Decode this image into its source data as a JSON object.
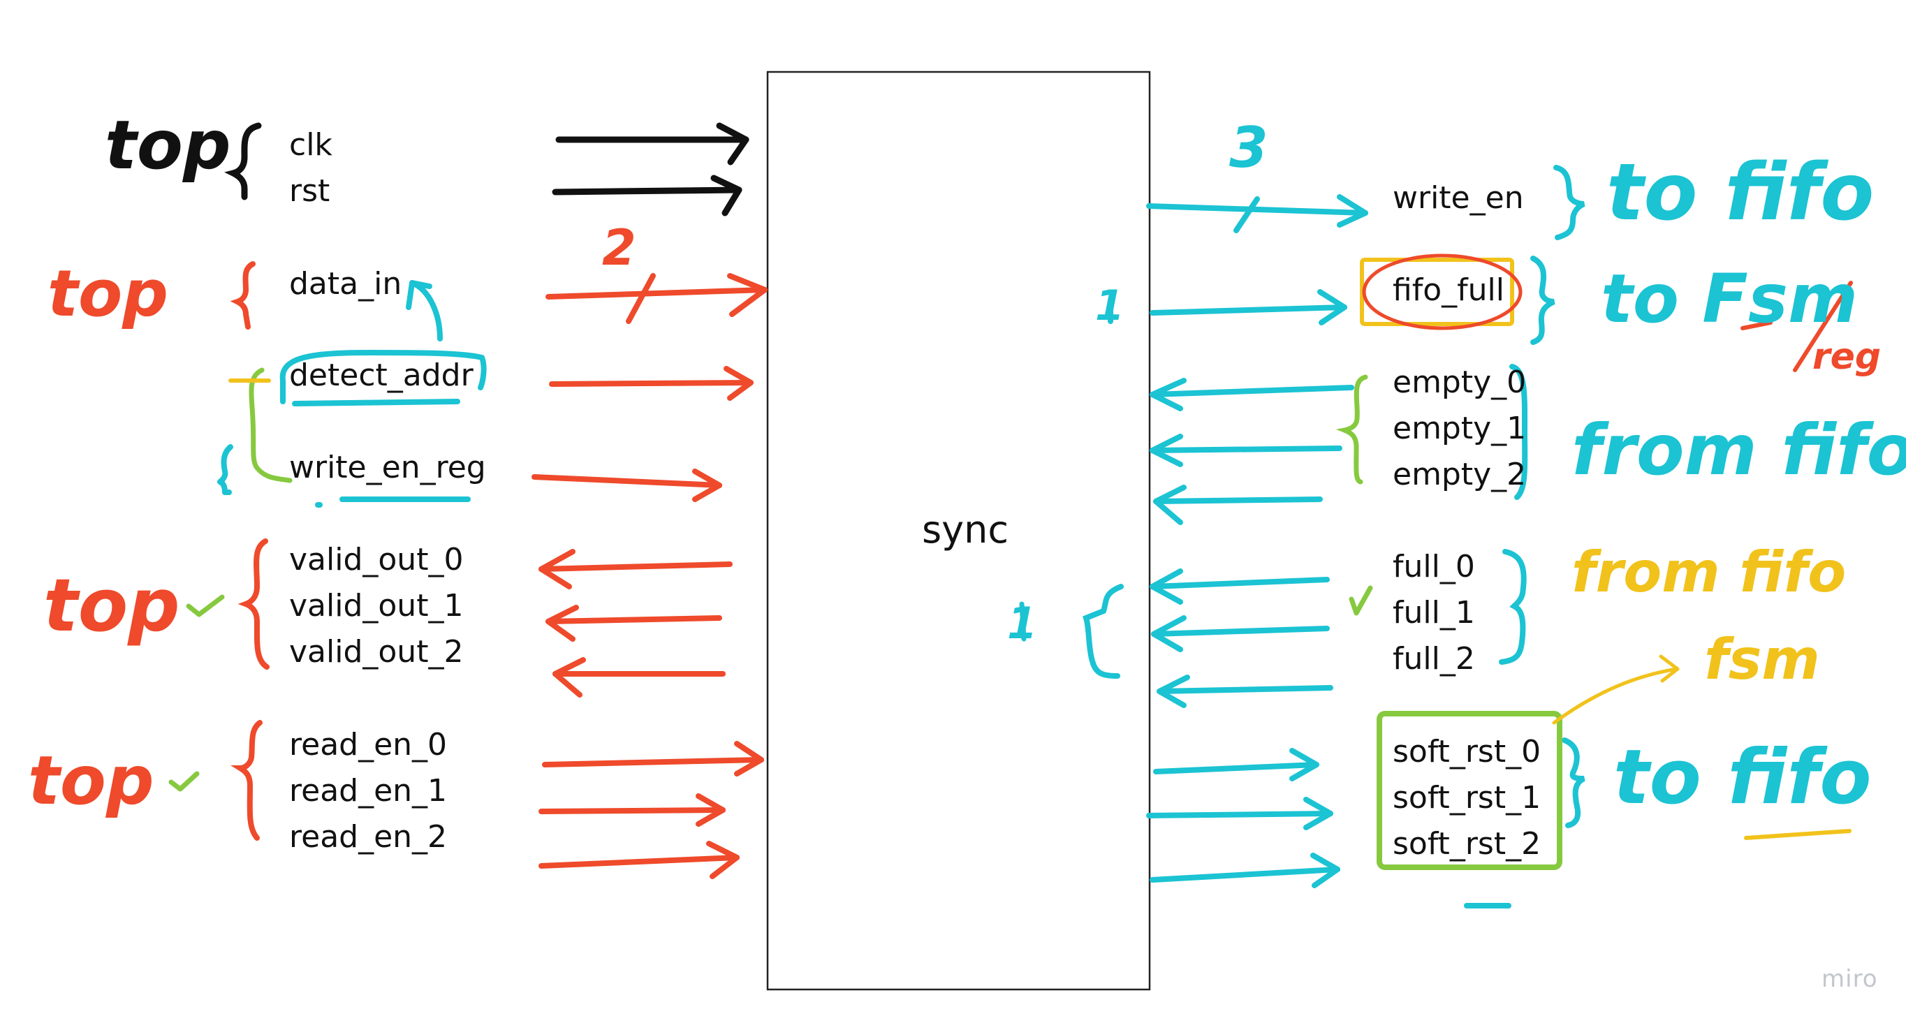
{
  "block": {
    "name": "sync"
  },
  "inputs_left": {
    "clk": "clk",
    "rst": "rst",
    "data_in": "data_in",
    "detect_addr": "detect_addr",
    "write_en_reg": "write_en_reg",
    "valid_out": [
      "valid_out_0",
      "valid_out_1",
      "valid_out_2"
    ],
    "read_en": [
      "read_en_0",
      "read_en_1",
      "read_en_2"
    ]
  },
  "outputs_right": {
    "write_en": "write_en",
    "fifo_full": "fifo_full",
    "empty": [
      "empty_0",
      "empty_1",
      "empty_2"
    ],
    "full": [
      "full_0",
      "full_1",
      "full_2"
    ],
    "soft_rst": [
      "soft_rst_0",
      "soft_rst_1",
      "soft_rst_2"
    ]
  },
  "notes": {
    "top_black": "top",
    "top_red_1": "top",
    "top_red_2": "top",
    "top_red_3": "top",
    "bus_2": "2",
    "bus_3": "3",
    "one_fifo_full": "1",
    "one_full": "1",
    "to_fifo_1": "to fifo",
    "to_fsm": "to Fsm",
    "reg": "reg",
    "from_fifo_1": "from fifo",
    "from_fifo_2": "from fifo",
    "fsm": "fsm",
    "to_fifo_2": "to fifo"
  },
  "watermark": "miro",
  "colors": {
    "black": "#111111",
    "red": "#ee4a2b",
    "cyan": "#1bc3d3",
    "green": "#86c93f",
    "yellow": "#f1c21b",
    "watermark": "#c3c6cc",
    "block_border": "#222222"
  }
}
